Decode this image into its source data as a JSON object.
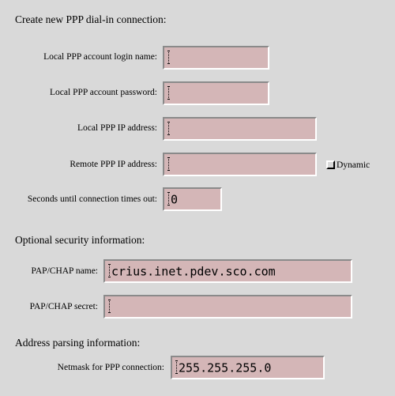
{
  "form": {
    "heading": "Create new PPP dial-in connection:",
    "login_name": {
      "label": "Local PPP account login name:",
      "value": ""
    },
    "password": {
      "label": "Local PPP account password:",
      "value": ""
    },
    "local_ip": {
      "label": "Local PPP IP address:",
      "value": ""
    },
    "remote_ip": {
      "label": "Remote PPP IP address:",
      "value": ""
    },
    "dynamic": {
      "label": "Dynamic",
      "checked": false
    },
    "timeout": {
      "label": "Seconds until connection times out:",
      "value": "0"
    }
  },
  "security": {
    "heading": "Optional security information:",
    "pap_chap_name": {
      "label": "PAP/CHAP name:",
      "value": "crius.inet.pdev.sco.com"
    },
    "pap_chap_secret": {
      "label": "PAP/CHAP secret:",
      "value": ""
    }
  },
  "address": {
    "heading": "Address parsing information:",
    "netmask": {
      "label": "Netmask for PPP connection:",
      "value": "255.255.255.0"
    }
  }
}
